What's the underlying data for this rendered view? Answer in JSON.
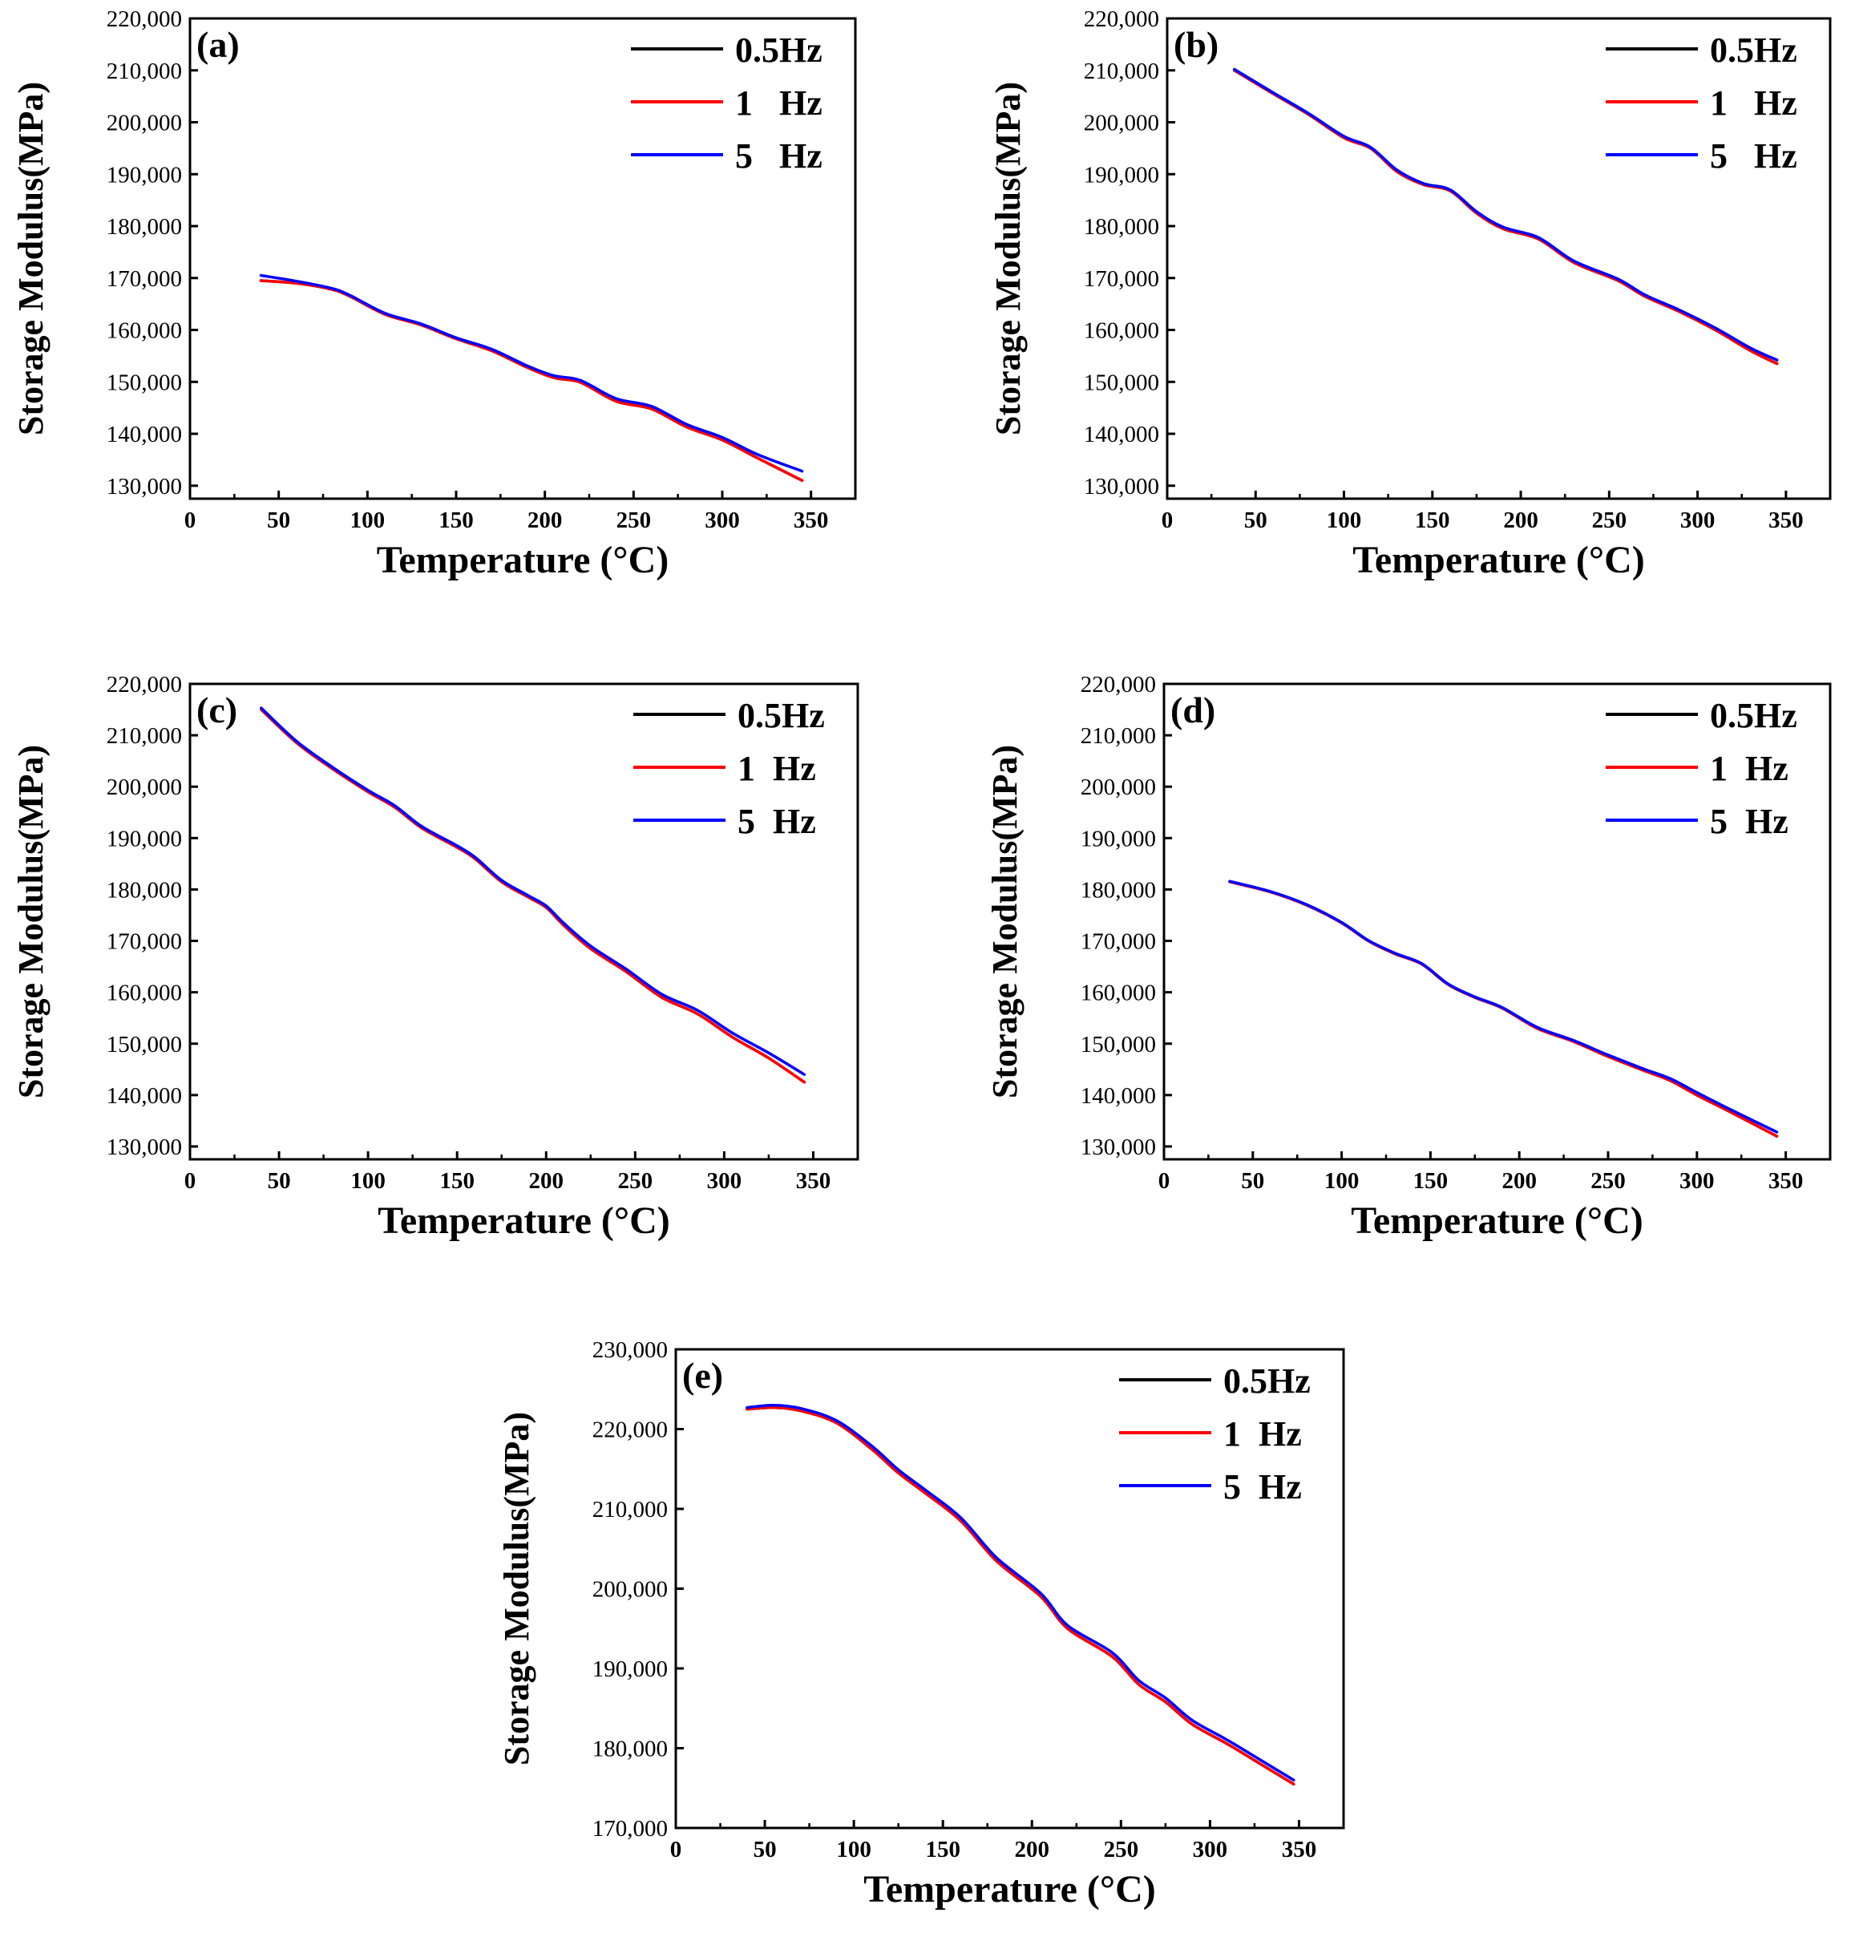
{
  "figure": {
    "colors": {
      "0.5Hz": "#000000",
      "1Hz": "#ff0000",
      "5Hz": "#0000ff",
      "axis": "#000000"
    },
    "chart_data": [
      {
        "type": "line",
        "panel_label": "(a)",
        "xlabel": "Temperature (°C)",
        "ylabel": "Storage Modulus(MPa)",
        "xlim": [
          0,
          375
        ],
        "ylim": [
          127500,
          220000
        ],
        "xticks": [
          0,
          50,
          100,
          150,
          200,
          250,
          300,
          350
        ],
        "xtick_labels": [
          "0",
          "50",
          "100",
          "150",
          "200",
          "250",
          "300",
          "350"
        ],
        "yticks": [
          130000,
          140000,
          150000,
          160000,
          170000,
          180000,
          190000,
          200000,
          210000,
          220000
        ],
        "ytick_labels": [
          "130,000",
          "140,000",
          "150,000",
          "160,000",
          "170,000",
          "180,000",
          "190,000",
          "200,000",
          "210,000",
          "220,000"
        ],
        "legend": [
          "0.5Hz",
          "1   Hz",
          "5   Hz"
        ],
        "legend_position": "top-right",
        "series": [
          {
            "name": "0.5Hz",
            "color": "#000000",
            "x": [
              40,
              60,
              80,
              90,
              110,
              130,
              150,
              170,
              190,
              205,
              220,
              240,
              260,
              280,
              300,
              320,
              345
            ],
            "y": [
              169500,
              169000,
              167800,
              166500,
              163000,
              161000,
              158300,
              156000,
              152800,
              150800,
              149900,
              146300,
              144800,
              141300,
              138800,
              135300,
              131000
            ]
          },
          {
            "name": "1 Hz",
            "color": "#ff0000",
            "x": [
              40,
              60,
              80,
              90,
              110,
              130,
              150,
              170,
              190,
              205,
              220,
              240,
              260,
              280,
              300,
              320,
              345
            ],
            "y": [
              169500,
              169000,
              167800,
              166500,
              163000,
              161000,
              158300,
              156000,
              152800,
              150800,
              149900,
              146300,
              144800,
              141300,
              138800,
              135300,
              131000
            ]
          },
          {
            "name": "5 Hz",
            "color": "#0000ff",
            "x": [
              40,
              60,
              80,
              90,
              110,
              130,
              150,
              170,
              190,
              205,
              220,
              240,
              260,
              280,
              300,
              320,
              345
            ],
            "y": [
              170500,
              169400,
              168000,
              166700,
              163200,
              161200,
              158500,
              156300,
              153100,
              151200,
              150300,
              146800,
              145300,
              141800,
              139300,
              136000,
              132800
            ]
          }
        ]
      },
      {
        "type": "line",
        "panel_label": "(b)",
        "xlabel": "Temperature (°C)",
        "ylabel": "Storage Modulus(MPa)",
        "xlim": [
          0,
          375
        ],
        "ylim": [
          127500,
          220000
        ],
        "xticks": [
          0,
          50,
          100,
          150,
          200,
          250,
          300,
          350
        ],
        "xtick_labels": [
          "0",
          "50",
          "100",
          "150",
          "200",
          "250",
          "300",
          "350"
        ],
        "yticks": [
          130000,
          140000,
          150000,
          160000,
          170000,
          180000,
          190000,
          200000,
          210000,
          220000
        ],
        "ytick_labels": [
          "130,000",
          "140,000",
          "150,000",
          "160,000",
          "170,000",
          "180,000",
          "190,000",
          "200,000",
          "210,000",
          "220,000"
        ],
        "legend": [
          "0.5Hz",
          "1   Hz",
          "5   Hz"
        ],
        "legend_position": "top-right",
        "series": [
          {
            "name": "0.5Hz",
            "color": "#000000",
            "x": [
              38,
              60,
              80,
              100,
              115,
              130,
              145,
              160,
              175,
              190,
              210,
              230,
              255,
              270,
              290,
              310,
              330,
              345
            ],
            "y": [
              210000,
              205500,
              201500,
              197000,
              195000,
              190500,
              188000,
              186800,
              182500,
              179500,
              177500,
              173000,
              169500,
              166500,
              163500,
              160000,
              156000,
              153500
            ]
          },
          {
            "name": "1 Hz",
            "color": "#ff0000",
            "x": [
              38,
              60,
              80,
              100,
              115,
              130,
              145,
              160,
              175,
              190,
              210,
              230,
              255,
              270,
              290,
              310,
              330,
              345
            ],
            "y": [
              210000,
              205500,
              201500,
              197000,
              195000,
              190500,
              188000,
              186800,
              182500,
              179500,
              177500,
              173000,
              169500,
              166500,
              163500,
              160000,
              156000,
              153500
            ]
          },
          {
            "name": "5 Hz",
            "color": "#0000ff",
            "x": [
              38,
              60,
              80,
              100,
              115,
              130,
              145,
              160,
              175,
              190,
              210,
              230,
              255,
              270,
              290,
              310,
              330,
              345
            ],
            "y": [
              210200,
              205700,
              201700,
              197300,
              195200,
              190800,
              188200,
              187000,
              182800,
              179800,
              177800,
              173300,
              169800,
              166800,
              163800,
              160400,
              156500,
              154200
            ]
          }
        ]
      },
      {
        "type": "line",
        "panel_label": "(c)",
        "xlabel": "Temperature (°C)",
        "ylabel": "Storage Modulus(MPa)",
        "xlim": [
          0,
          375
        ],
        "ylim": [
          127500,
          220000
        ],
        "xticks": [
          0,
          50,
          100,
          150,
          200,
          250,
          300,
          350
        ],
        "xtick_labels": [
          "0",
          "50",
          "100",
          "150",
          "200",
          "250",
          "300",
          "350"
        ],
        "yticks": [
          130000,
          140000,
          150000,
          160000,
          170000,
          180000,
          190000,
          200000,
          210000,
          220000
        ],
        "ytick_labels": [
          "130,000",
          "140,000",
          "150,000",
          "160,000",
          "170,000",
          "180,000",
          "190,000",
          "200,000",
          "210,000",
          "220,000"
        ],
        "legend": [
          "0.5Hz",
          "1  Hz",
          "5  Hz"
        ],
        "legend_position": "top-right",
        "series": [
          {
            "name": "0.5Hz",
            "color": "#000000",
            "x": [
              40,
              60,
              80,
              100,
              115,
              130,
              150,
              160,
              175,
              190,
              200,
              210,
              225,
              245,
              265,
              285,
              305,
              325,
              345
            ],
            "y": [
              215000,
              208500,
              203500,
              199000,
              196000,
              192000,
              188200,
              186000,
              181500,
              178500,
              176500,
              173000,
              168500,
              164000,
              159000,
              155800,
              151200,
              147200,
              142500
            ]
          },
          {
            "name": "1 Hz",
            "color": "#ff0000",
            "x": [
              40,
              60,
              80,
              100,
              115,
              130,
              150,
              160,
              175,
              190,
              200,
              210,
              225,
              245,
              265,
              285,
              305,
              325,
              345
            ],
            "y": [
              215000,
              208500,
              203500,
              199000,
              196000,
              192000,
              188200,
              186000,
              181500,
              178500,
              176500,
              173000,
              168500,
              164000,
              159000,
              155800,
              151200,
              147200,
              142500
            ]
          },
          {
            "name": "5 Hz",
            "color": "#0000ff",
            "x": [
              40,
              60,
              80,
              100,
              115,
              130,
              150,
              160,
              175,
              190,
              200,
              210,
              225,
              245,
              265,
              285,
              305,
              325,
              345
            ],
            "y": [
              215300,
              208800,
              203800,
              199300,
              196300,
              192300,
              188500,
              186300,
              181800,
              178800,
              176800,
              173400,
              169000,
              164500,
              159600,
              156500,
              152000,
              148200,
              144000
            ]
          }
        ]
      },
      {
        "type": "line",
        "panel_label": "(d)",
        "xlabel": "Temperature (°C)",
        "ylabel": "Storage Modulus(MPa)",
        "xlim": [
          0,
          375
        ],
        "ylim": [
          127500,
          220000
        ],
        "xticks": [
          0,
          50,
          100,
          150,
          200,
          250,
          300,
          350
        ],
        "xtick_labels": [
          "0",
          "50",
          "100",
          "150",
          "200",
          "250",
          "300",
          "350"
        ],
        "yticks": [
          130000,
          140000,
          150000,
          160000,
          170000,
          180000,
          190000,
          200000,
          210000,
          220000
        ],
        "ytick_labels": [
          "130,000",
          "140,000",
          "150,000",
          "160,000",
          "170,000",
          "180,000",
          "190,000",
          "200,000",
          "210,000",
          "220,000"
        ],
        "legend": [
          "0.5Hz",
          "1  Hz",
          "5  Hz"
        ],
        "legend_position": "top-right",
        "series": [
          {
            "name": "0.5Hz",
            "color": "#000000",
            "x": [
              37,
              60,
              80,
              100,
              115,
              130,
              145,
              160,
              175,
              190,
              210,
              230,
              250,
              270,
              285,
              300,
              320,
              345
            ],
            "y": [
              181500,
              179500,
              177000,
              173500,
              170000,
              167500,
              165500,
              161500,
              159000,
              157000,
              153000,
              150500,
              147500,
              144800,
              142800,
              140000,
              136500,
              132000
            ]
          },
          {
            "name": "1 Hz",
            "color": "#ff0000",
            "x": [
              37,
              60,
              80,
              100,
              115,
              130,
              145,
              160,
              175,
              190,
              210,
              230,
              250,
              270,
              285,
              300,
              320,
              345
            ],
            "y": [
              181500,
              179500,
              177000,
              173500,
              170000,
              167500,
              165500,
              161500,
              159000,
              157000,
              153000,
              150500,
              147500,
              144800,
              142800,
              140000,
              136500,
              132000
            ]
          },
          {
            "name": "5 Hz",
            "color": "#0000ff",
            "x": [
              37,
              60,
              80,
              100,
              115,
              130,
              145,
              160,
              175,
              190,
              210,
              230,
              250,
              270,
              285,
              300,
              320,
              345
            ],
            "y": [
              181600,
              179600,
              177100,
              173600,
              170100,
              167600,
              165600,
              161600,
              159100,
              157100,
              153200,
              150700,
              147800,
              145100,
              143200,
              140500,
              137000,
              132800
            ]
          }
        ]
      },
      {
        "type": "line",
        "panel_label": "(e)",
        "xlabel": "Temperature (°C)",
        "ylabel": "Storage Modulus(MPa)",
        "xlim": [
          0,
          375
        ],
        "ylim": [
          170000,
          230000
        ],
        "xticks": [
          0,
          50,
          100,
          150,
          200,
          250,
          300,
          350
        ],
        "xtick_labels": [
          "0",
          "50",
          "100",
          "150",
          "200",
          "250",
          "300",
          "350"
        ],
        "yticks": [
          170000,
          180000,
          190000,
          200000,
          210000,
          220000,
          230000
        ],
        "ytick_labels": [
          "170,000",
          "180,000",
          "190,000",
          "200,000",
          "210,000",
          "220,000",
          "230,000"
        ],
        "legend": [
          "0.5Hz",
          "1  Hz",
          "5  Hz"
        ],
        "legend_position": "top-right",
        "series": [
          {
            "name": "0.5Hz",
            "color": "#000000",
            "x": [
              40,
              55,
              70,
              90,
              110,
              125,
              140,
              160,
              180,
              205,
              220,
              245,
              260,
              275,
              290,
              310,
              330,
              347
            ],
            "y": [
              222500,
              222700,
              222300,
              220800,
              217500,
              214500,
              212000,
              208500,
              203500,
              199000,
              195000,
              191500,
              188000,
              185800,
              183000,
              180500,
              177800,
              175500
            ]
          },
          {
            "name": "1 Hz",
            "color": "#ff0000",
            "x": [
              40,
              55,
              70,
              90,
              110,
              125,
              140,
              160,
              180,
              205,
              220,
              245,
              260,
              275,
              290,
              310,
              330,
              347
            ],
            "y": [
              222500,
              222700,
              222300,
              220800,
              217500,
              214500,
              212000,
              208500,
              203500,
              199000,
              195000,
              191500,
              188000,
              185800,
              183000,
              180500,
              177800,
              175500
            ]
          },
          {
            "name": "5 Hz",
            "color": "#0000ff",
            "x": [
              40,
              55,
              70,
              90,
              110,
              125,
              140,
              160,
              180,
              205,
              220,
              245,
              260,
              275,
              290,
              310,
              330,
              347
            ],
            "y": [
              222700,
              223000,
              222600,
              221100,
              217900,
              214900,
              212400,
              208900,
              203900,
              199400,
              195400,
              192000,
              188500,
              186300,
              183500,
              181000,
              178300,
              176000
            ]
          }
        ]
      }
    ]
  }
}
